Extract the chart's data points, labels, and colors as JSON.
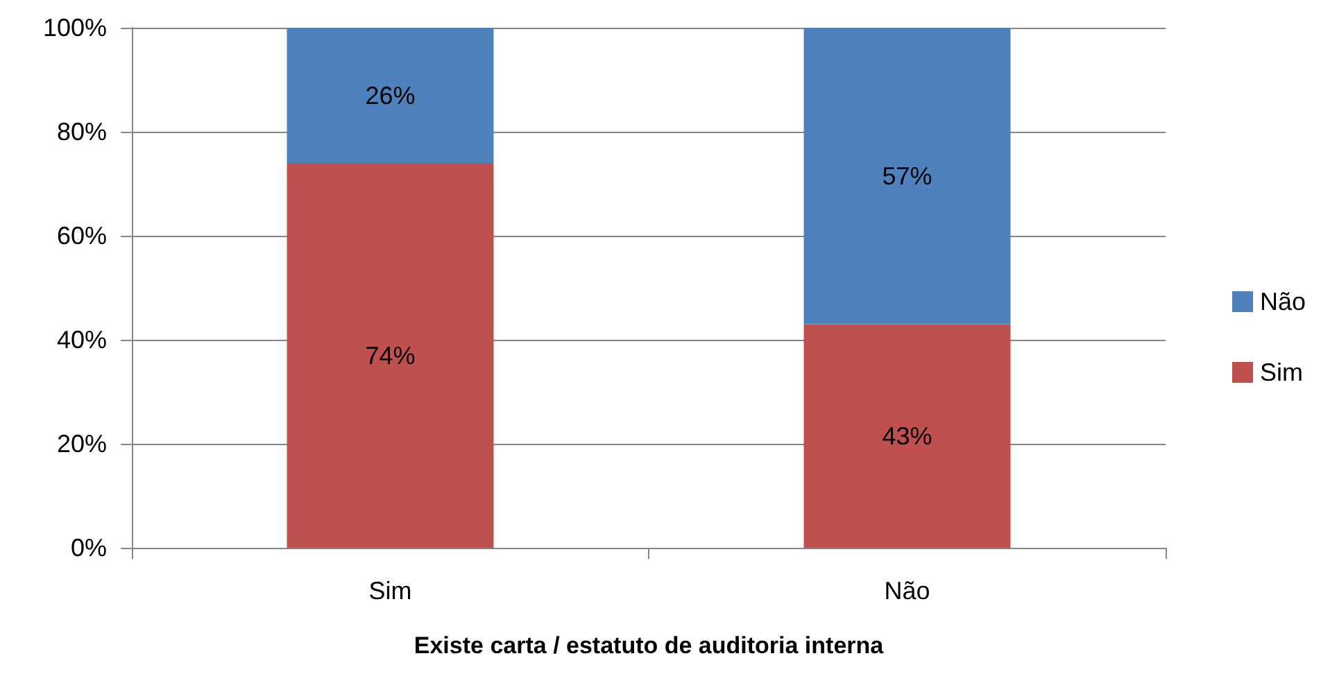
{
  "chart_data": {
    "type": "bar",
    "stacked": true,
    "xlabel": "Existe carta / estatuto de auditoria interna",
    "categories": [
      "Sim",
      "Não"
    ],
    "series": [
      {
        "name": "Sim",
        "color": "#c0504d",
        "values": [
          74,
          43
        ],
        "value_labels": [
          "74%",
          "43%"
        ]
      },
      {
        "name": "Não",
        "color": "#4f81bd",
        "values": [
          26,
          57
        ],
        "value_labels": [
          "26%",
          "57%"
        ]
      }
    ],
    "ylim": [
      0,
      100
    ],
    "yticks": [
      {
        "value": 0,
        "label": "0%"
      },
      {
        "value": 20,
        "label": "20%"
      },
      {
        "value": 40,
        "label": "40%"
      },
      {
        "value": 60,
        "label": "60%"
      },
      {
        "value": 80,
        "label": "80%"
      },
      {
        "value": 100,
        "label": "100%"
      }
    ],
    "grid": "y",
    "legend": "right"
  }
}
